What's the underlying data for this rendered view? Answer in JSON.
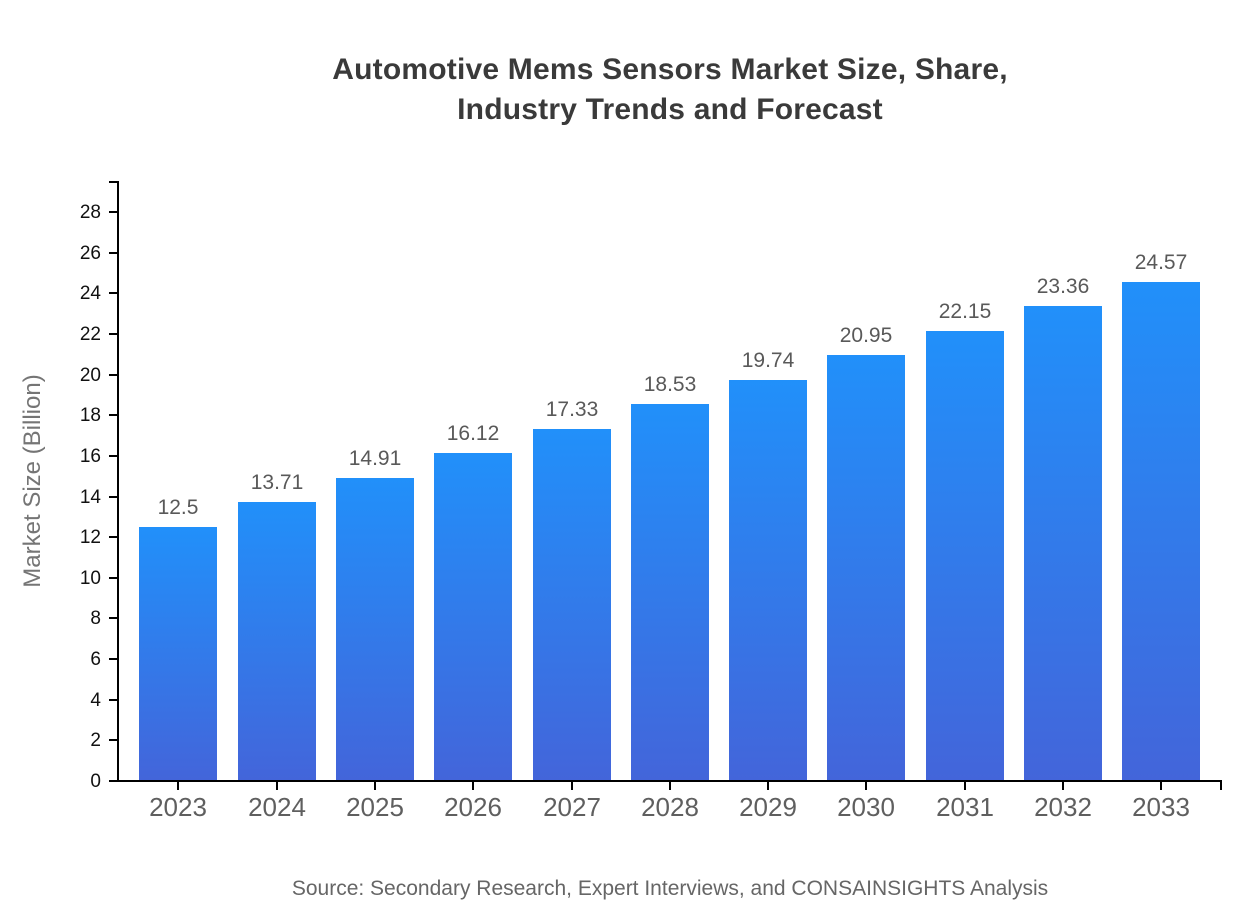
{
  "title": {
    "line1": "Automotive Mems Sensors Market Size, Share,",
    "line2": "Industry Trends and Forecast"
  },
  "y_axis_title": "Market Size (Billion)",
  "source_note": "Source: Secondary Research, Expert Interviews, and CONSAINSIGHTS Analysis",
  "colors": {
    "background": "#ffffff",
    "bar_top": "#2190fa",
    "bar_bottom": "#4365da",
    "axis": "#000000",
    "title_text": "#3a3a3a",
    "value_label": "#595959",
    "x_tick_label": "#5f5f5f",
    "y_tick_label": "#111111",
    "y_axis_title": "#757575",
    "source_text": "#666666"
  },
  "chart_data": {
    "type": "bar",
    "title": "Automotive Mems Sensors Market Size, Share, Industry Trends and Forecast",
    "categories": [
      "2023",
      "2024",
      "2025",
      "2026",
      "2027",
      "2028",
      "2029",
      "2030",
      "2031",
      "2032",
      "2033"
    ],
    "values": [
      12.5,
      13.71,
      14.91,
      16.12,
      17.33,
      18.53,
      19.74,
      20.95,
      22.15,
      23.36,
      24.57
    ],
    "value_labels": [
      "12.5",
      "13.71",
      "14.91",
      "16.12",
      "17.33",
      "18.53",
      "19.74",
      "20.95",
      "22.15",
      "23.36",
      "24.57"
    ],
    "xlabel": "",
    "ylabel": "Market Size (Billion)",
    "ylim": [
      0,
      29.5
    ],
    "y_ticks": [
      0,
      2,
      4,
      6,
      8,
      10,
      12,
      14,
      16,
      18,
      20,
      22,
      24,
      26,
      28
    ],
    "grid": false,
    "legend": false,
    "bar_labels_shown": true
  }
}
